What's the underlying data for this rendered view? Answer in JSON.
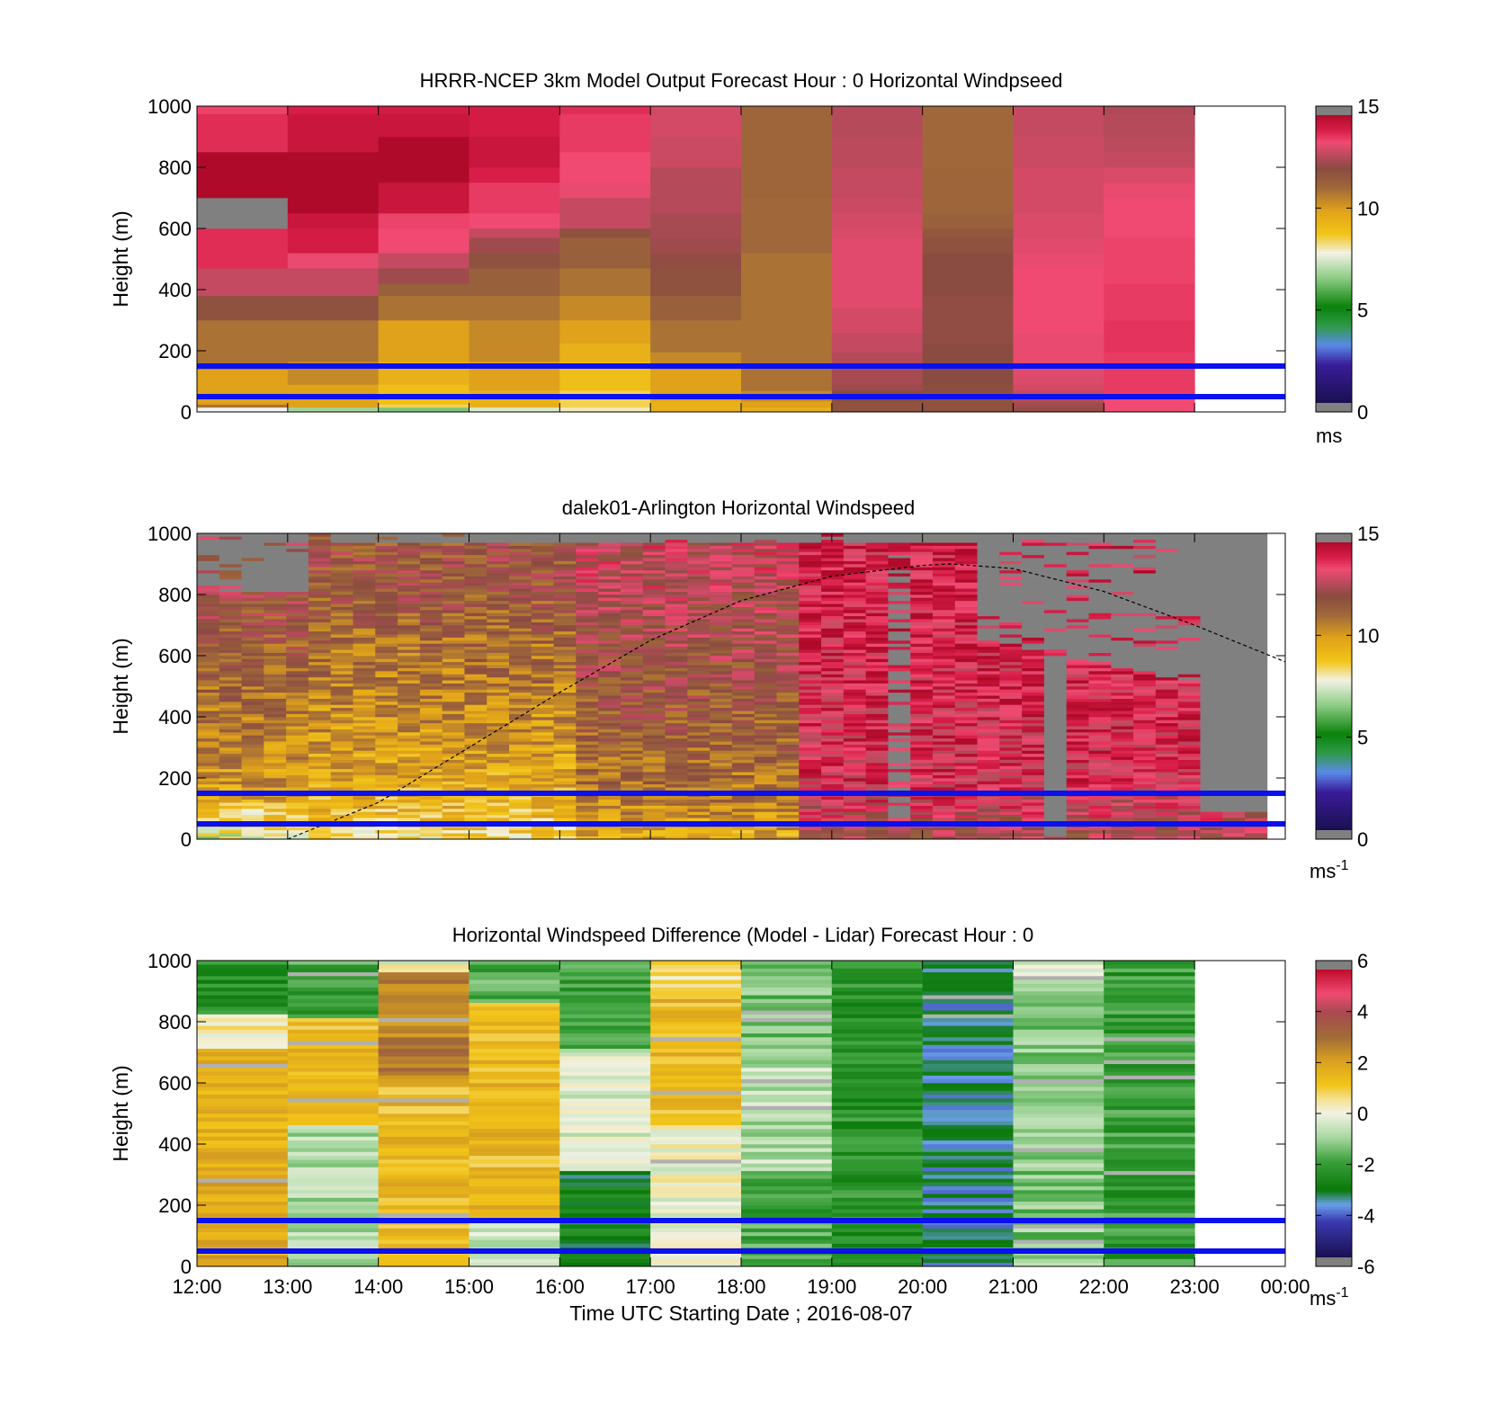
{
  "colors": {
    "wind_scale": [
      "#2a2a2a",
      "#150050",
      "#3a1c9a",
      "#4d6ee6",
      "#2f9a4a",
      "#0a7a0a",
      "#8ccc84",
      "#f0f0e0",
      "#f2c12e",
      "#e6a80a",
      "#a06a30",
      "#8a5040",
      "#c84a5a",
      "#f04a70",
      "#c00a2a",
      "#808080"
    ],
    "diff_scale": [
      "#606060",
      "#150050",
      "#3a1c9a",
      "#4d6ee6",
      "#0a7a0a",
      "#6ab86a",
      "#f0f0e0",
      "#f2c12e",
      "#a06a30",
      "#c84a5a",
      "#f04a70",
      "#808080"
    ],
    "reference_lines": "#0a10ee",
    "missing": "#808080"
  },
  "chart_data": [
    {
      "type": "heatmap",
      "title": "HRRR-NCEP 3km Model Output   Forecast Hour : 0 Horizontal Windpseed",
      "ylabel": "Height (m)",
      "y_ticks": [
        "0",
        "200",
        "400",
        "600",
        "800",
        "1000"
      ],
      "ylim": [
        0,
        1000
      ],
      "xlim": [
        "12:00",
        "00:00"
      ],
      "colorbar": {
        "ticks": [
          "0",
          "5",
          "10",
          "15"
        ],
        "range": [
          0,
          15
        ],
        "unit": "ms"
      },
      "reference_lines_m": [
        50,
        150
      ],
      "columns": [
        "12:00",
        "13:00",
        "14:00",
        "15:00",
        "16:00",
        "17:00",
        "18:00",
        "19:00",
        "20:00",
        "21:00",
        "22:00"
      ],
      "description_values": "model windspeed 0-15 m/s; low levels ~8-10 (yellow), upper levels ~13-15 (red)"
    },
    {
      "type": "heatmap",
      "title": "dalek01-Arlington  Horizontal Windspeed",
      "ylabel": "Height (m)",
      "y_ticks": [
        "0",
        "200",
        "400",
        "600",
        "800",
        "1000"
      ],
      "ylim": [
        0,
        1000
      ],
      "xlim": [
        "12:00",
        "00:00"
      ],
      "colorbar": {
        "ticks": [
          "0",
          "5",
          "10",
          "15"
        ],
        "range": [
          0,
          15
        ],
        "unit": "ms",
        "unit_exp": "-1"
      },
      "reference_lines_m": [
        50,
        150
      ],
      "boundary_layer_curve": {
        "x_hours": [
          13.0,
          14.0,
          15.0,
          16.0,
          17.0,
          18.0,
          19.0,
          20.0,
          20.3,
          21.0,
          22.0,
          23.0,
          24.0
        ],
        "y_m": [
          0,
          120,
          300,
          480,
          650,
          780,
          860,
          895,
          900,
          885,
          810,
          700,
          580
        ]
      }
    },
    {
      "type": "heatmap",
      "title": "Horizontal Windspeed Difference (Model - Lidar) Forecast Hour : 0",
      "ylabel": "Height (m)",
      "xlabel": "Time UTC  Starting Date ; 2016-08-07",
      "y_ticks": [
        "0",
        "200",
        "400",
        "600",
        "800",
        "1000"
      ],
      "x_ticks": [
        "12:00",
        "13:00",
        "14:00",
        "15:00",
        "16:00",
        "17:00",
        "18:00",
        "19:00",
        "20:00",
        "21:00",
        "22:00",
        "23:00",
        "00:00"
      ],
      "ylim": [
        0,
        1000
      ],
      "colorbar": {
        "ticks": [
          "-6",
          "-4",
          "-2",
          "0",
          "2",
          "4",
          "6"
        ],
        "range": [
          -6,
          6
        ],
        "unit": "ms",
        "unit_exp": "-1"
      },
      "reference_lines_m": [
        50,
        150
      ]
    }
  ]
}
